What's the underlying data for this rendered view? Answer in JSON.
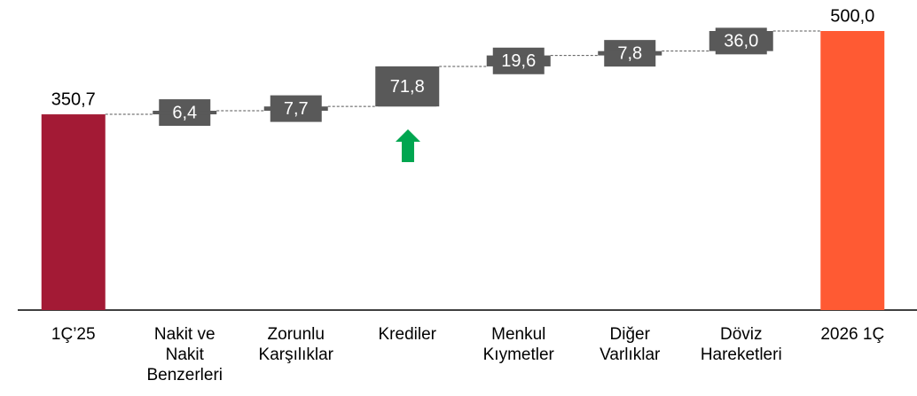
{
  "chart_data": {
    "type": "waterfall",
    "categories": [
      "1Ç’25",
      "Nakit ve\nNakit\nBenzerleri",
      "Zorunlu\nKarşılıklar",
      "Krediler",
      "Menkul\nKıymetler",
      "Diğer\nVarlıklar",
      "Döviz\nHareketleri",
      "2026 1Ç"
    ],
    "values": [
      350.7,
      6.4,
      7.7,
      71.8,
      19.6,
      7.8,
      36.0,
      500.0
    ],
    "value_labels": [
      "350,7",
      "6,4",
      "7,7",
      "71,8",
      "19,6",
      "7,8",
      "36,0",
      "500,0"
    ],
    "total_colors": [
      "#a31a35",
      "#ff5a33"
    ],
    "color": "#595959"
  }
}
